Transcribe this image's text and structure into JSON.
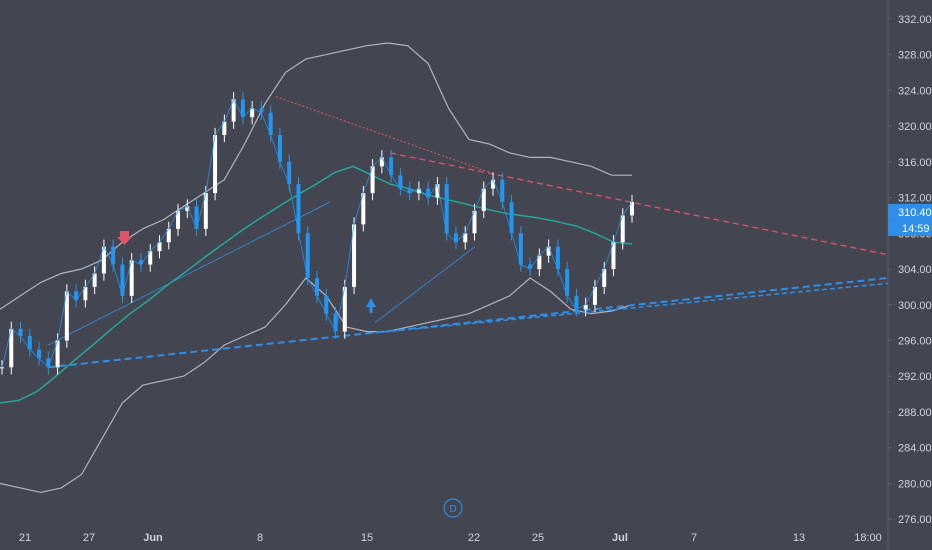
{
  "colors": {
    "background": "#434651",
    "axis_text": "#d1d4dc",
    "bands": "#b2b5be",
    "ma_line": "#26a69a",
    "price_up": "#ffffff",
    "price_down": "#2196f3",
    "trend_down": "#e0536b",
    "trend_up": "#2e8fe8",
    "tag_bg": "#2e8fe8"
  },
  "chart_data": {
    "type": "line",
    "x_ticks": [
      "21",
      "27",
      "Jun",
      "8",
      "15",
      "22",
      "25",
      "Jul",
      "7",
      "13",
      "18:00"
    ],
    "y_ticks": [
      "332.00",
      "328.00",
      "324.00",
      "320.00",
      "316.00",
      "312.00",
      "308.00",
      "304.00",
      "300.00",
      "296.00",
      "292.00",
      "288.00",
      "284.00",
      "280.00",
      "276.00"
    ],
    "ylim": [
      273,
      334
    ],
    "grid": false,
    "price": {
      "name": "",
      "values": [
        293.0,
        297.3,
        296.5,
        295.0,
        294.0,
        293.0,
        296.0,
        301.5,
        300.5,
        302.0,
        303.5,
        306.5,
        304.5,
        301.0,
        305.0,
        304.5,
        306.0,
        307.0,
        308.5,
        310.5,
        311.0,
        308.5,
        312.5,
        319.0,
        320.5,
        323.0,
        321.0,
        322.0,
        321.5,
        319.0,
        316.0,
        313.5,
        308.0,
        303.0,
        301.0,
        299.0,
        297.0,
        302.0,
        309.0,
        312.5,
        315.5,
        316.5,
        314.5,
        313.0,
        312.5,
        313.0,
        312.0,
        313.5,
        308.0,
        307.0,
        308.0,
        310.5,
        313.0,
        314.0,
        311.5,
        308.0,
        304.5,
        304.0,
        305.5,
        306.5,
        304.0,
        301.0,
        299.5,
        300.0,
        302.0,
        304.0,
        307.0,
        310.0,
        311.5
      ]
    },
    "ma_line": {
      "name": "",
      "values": [
        289.0,
        289.3,
        290.3,
        292.0,
        293.8,
        295.5,
        297.3,
        299.0,
        300.5,
        302.2,
        303.7,
        305.3,
        306.8,
        308.3,
        309.7,
        311.0,
        312.3,
        313.5,
        314.8,
        315.5,
        314.5,
        313.5,
        313.0,
        312.3,
        311.8,
        311.3,
        310.8,
        310.3,
        310.0,
        309.7,
        309.3,
        308.8,
        308.0,
        307.0,
        306.8
      ]
    },
    "upper_band": {
      "name": "",
      "values": [
        299.5,
        301.0,
        302.5,
        303.5,
        304.0,
        305.0,
        307.0,
        308.5,
        309.5,
        311.0,
        312.5,
        314.0,
        318.0,
        322.5,
        326.0,
        327.5,
        328.0,
        328.5,
        329.0,
        329.3,
        329.0,
        327.0,
        322.0,
        318.5,
        318.0,
        317.0,
        316.5,
        316.5,
        316.0,
        315.5,
        314.5,
        314.5
      ]
    },
    "lower_band": {
      "name": "",
      "values": [
        280.0,
        279.5,
        279.0,
        279.5,
        281.0,
        285.0,
        289.0,
        291.0,
        291.5,
        292.0,
        293.5,
        295.5,
        296.5,
        297.5,
        300.0,
        303.0,
        301.0,
        297.5,
        297.0,
        297.0,
        297.5,
        298.0,
        298.5,
        299.0,
        300.0,
        301.0,
        303.0,
        301.5,
        299.5,
        299.0,
        299.3,
        300.0
      ]
    },
    "last_price": "310.40",
    "countdown": "14:59",
    "dividend_marker": "D"
  }
}
